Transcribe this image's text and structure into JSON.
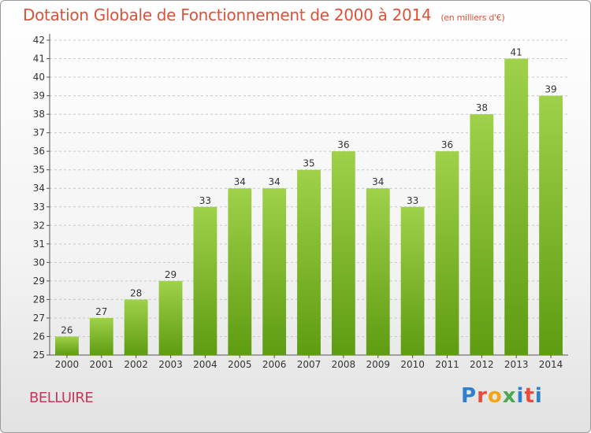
{
  "header": {
    "title": "Dotation Globale de Fonctionnement de 2000 à 2014",
    "subtitle": "(en milliers d'€)"
  },
  "footer": {
    "commune": "BELLUIRE",
    "logo_text": "Proxiti",
    "logo_colors": [
      "#2f7fd0",
      "#e94c3d",
      "#f2a516",
      "#4aa84d",
      "#2f7fd0",
      "#e94c3d"
    ]
  },
  "colors": {
    "bar_light": "#9fd14a",
    "bar_dark": "#5e9c12",
    "title": "#d9533a",
    "commune": "#c8375a"
  },
  "chart_data": {
    "type": "bar",
    "title": "Dotation Globale de Fonctionnement de 2000 à 2014",
    "subtitle": "(en milliers d'€)",
    "categories": [
      "2000",
      "2001",
      "2002",
      "2003",
      "2004",
      "2005",
      "2006",
      "2007",
      "2008",
      "2009",
      "2010",
      "2011",
      "2012",
      "2013",
      "2014"
    ],
    "values": [
      26,
      27,
      28,
      29,
      33,
      34,
      34,
      35,
      36,
      34,
      33,
      36,
      38,
      41,
      39
    ],
    "ylim": [
      25,
      42
    ],
    "yticks": [
      25,
      26,
      27,
      28,
      29,
      30,
      31,
      32,
      33,
      34,
      35,
      36,
      37,
      38,
      39,
      40,
      41,
      42
    ],
    "grid": true,
    "data_labels": true
  }
}
